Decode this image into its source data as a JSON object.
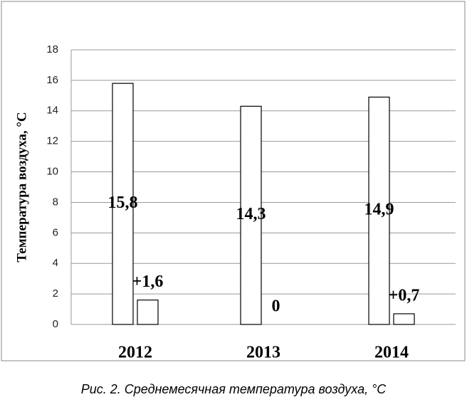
{
  "chart_data": {
    "type": "bar",
    "y_label": "Температура воздуха, °C",
    "caption": "Рис. 2. Среднемесячная температура воздуха, °C",
    "categories": [
      "2012",
      "2013",
      "2014"
    ],
    "series": [
      {
        "color": "#ffffff",
        "values": [
          15.8,
          14.3,
          14.9
        ],
        "value_labels": [
          "15,8",
          "14,3",
          "14,9"
        ]
      },
      {
        "color": "#ffffff",
        "values": [
          1.6,
          0,
          0.7
        ],
        "value_labels": [
          "+1,6",
          "0",
          "+0,7"
        ]
      }
    ],
    "ylim": [
      0,
      18
    ],
    "yticks": [
      0,
      2,
      4,
      6,
      8,
      10,
      12,
      14,
      16,
      18
    ],
    "grid": true
  }
}
